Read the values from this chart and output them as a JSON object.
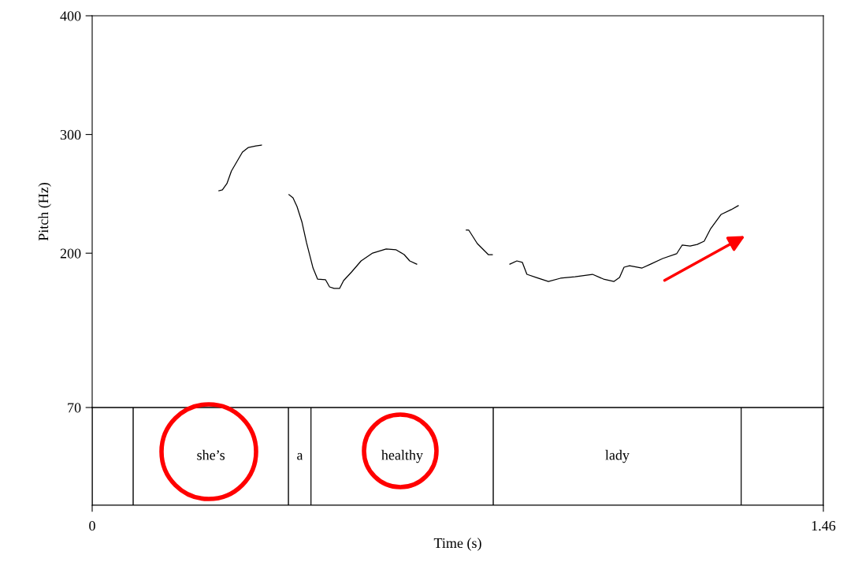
{
  "chart_data": [
    {
      "type": "line",
      "ylabel": "Pitch (Hz)",
      "xlim": [
        0,
        1.46
      ],
      "ylim": [
        70,
        400
      ],
      "yticks": [
        70,
        200,
        300,
        400
      ],
      "tick_labels": "y",
      "grid": false,
      "line_style": "solid",
      "marker": "none",
      "series": [
        {
          "color": "#000000",
          "x": [
            0.253,
            0.26,
            0.269,
            0.278,
            0.289,
            0.3,
            0.312,
            0.327,
            0.338,
            0.365,
            0.393,
            0.401,
            0.409,
            0.419,
            0.428,
            0.441,
            0.45,
            0.466,
            0.474,
            0.483,
            0.494,
            0.502,
            0.518,
            0.537,
            0.56,
            0.587,
            0.607,
            0.623,
            0.634,
            0.648,
            0.7,
            0.747,
            0.752,
            0.769,
            0.791,
            0.799,
            0.815,
            0.834,
            0.848,
            0.859,
            0.868,
            0.887,
            0.911,
            0.935,
            0.964,
            0.999,
            1.021,
            1.042,
            1.053,
            1.062,
            1.073,
            1.098,
            1.115,
            1.139,
            1.167,
            1.178,
            1.194,
            1.208,
            1.222,
            1.235,
            1.256,
            1.276,
            1.29
          ],
          "values": [
            252.6,
            253.3,
            258.6,
            269.2,
            277.2,
            285.1,
            289.1,
            290.4,
            291.1,
            null,
            249.3,
            246.6,
            239.3,
            226.0,
            208.8,
            187.5,
            178.2,
            177.6,
            171.6,
            170.3,
            170.3,
            176.9,
            184.2,
            193.5,
            200.1,
            203.5,
            202.8,
            198.8,
            193.5,
            190.8,
            null,
            219.4,
            219.4,
            208.1,
            198.8,
            198.8,
            null,
            190.8,
            193.5,
            192.2,
            182.2,
            179.5,
            176.2,
            178.9,
            180.2,
            182.2,
            178.2,
            176.2,
            179.5,
            188.2,
            189.5,
            187.5,
            190.8,
            195.5,
            199.5,
            206.8,
            206.1,
            207.4,
            210.1,
            220.7,
            232.7,
            236.7,
            240.0
          ]
        }
      ]
    },
    {
      "type": "bar",
      "orientation": "horizontal",
      "stacked": true,
      "xlabel": "Time (s)",
      "xlim": [
        0,
        1.46
      ],
      "xticks": [
        0,
        1.46
      ],
      "tick_labels": "x",
      "categories": [
        null
      ],
      "series": [
        {
          "color": "#ffffff",
          "values": [
            0.082
          ],
          "value_labels": [
            null
          ]
        },
        {
          "color": "#ffffff",
          "values": [
            0.31
          ],
          "value_labels": [
            "she’s"
          ]
        },
        {
          "color": "#ffffff",
          "values": [
            0.045
          ],
          "value_labels": [
            "a"
          ]
        },
        {
          "color": "#ffffff",
          "values": [
            0.364
          ],
          "value_labels": [
            "healthy"
          ]
        },
        {
          "color": "#ffffff",
          "values": [
            0.495
          ],
          "value_labels": [
            "lady"
          ]
        },
        {
          "color": "#ffffff",
          "values": [
            0.164
          ],
          "value_labels": [
            null
          ]
        }
      ]
    }
  ]
}
